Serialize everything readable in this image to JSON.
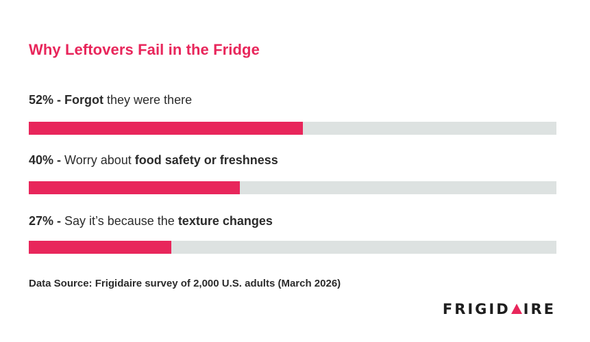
{
  "title": "Why Leftovers Fail in the Fridge",
  "items": [
    {
      "pct": "52%",
      "sep": " - ",
      "plain_before": "",
      "bold": "Forgot",
      "plain_after": " they were there",
      "value": 52
    },
    {
      "pct": "40%",
      "sep": " - ",
      "plain_before": "Worry about ",
      "bold": "food safety or freshness",
      "plain_after": "",
      "value": 40
    },
    {
      "pct": "27%",
      "sep": " - ",
      "plain_before": "Say it’s because the ",
      "bold": "texture changes",
      "plain_after": "",
      "value": 27
    }
  ],
  "source": "Data Source: Frigidaire survey of 2,000 U.S. adults (March 2026)",
  "logo": {
    "left": "FRIGID",
    "right": "IRE"
  },
  "colors": {
    "accent": "#e8265b",
    "track": "#dde2e1",
    "text": "#2b2b2b"
  },
  "chart_data": {
    "type": "bar",
    "orientation": "horizontal",
    "title": "Why Leftovers Fail in the Fridge",
    "categories": [
      "Forgot they were there",
      "Worry about food safety or freshness",
      "Say it’s because the texture changes"
    ],
    "values": [
      52,
      40,
      27
    ],
    "unit": "%",
    "xlim": [
      0,
      100
    ],
    "grid": false,
    "legend": "none"
  }
}
